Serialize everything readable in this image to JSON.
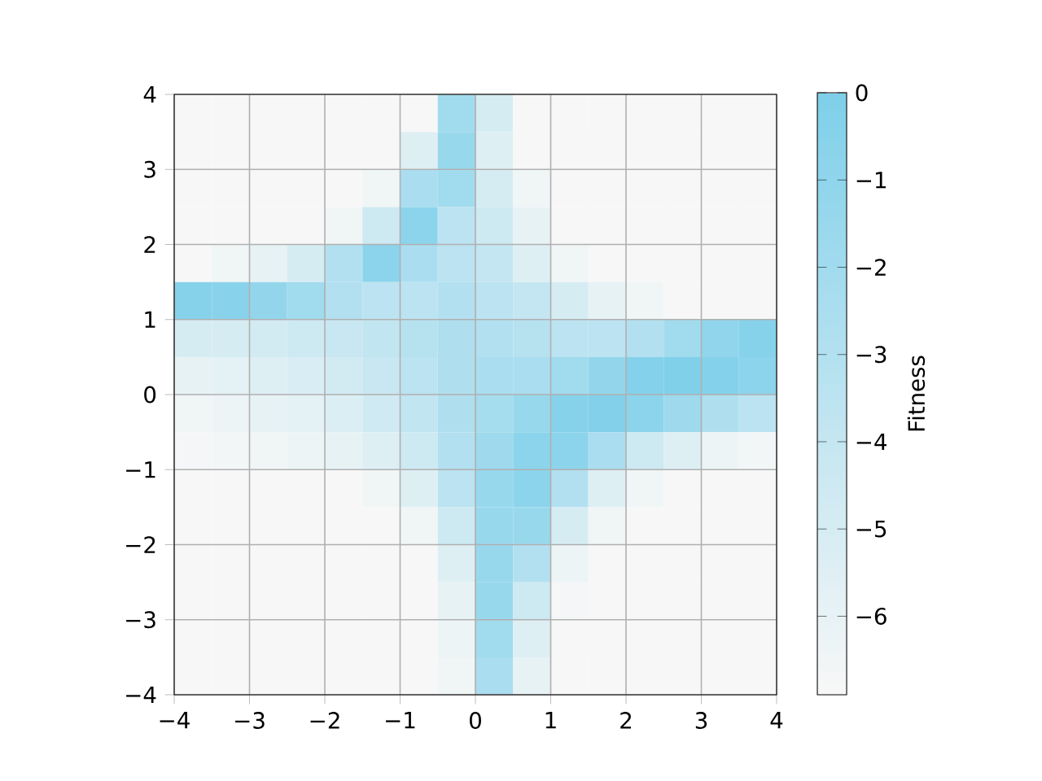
{
  "chart_data": {
    "type": "heatmap",
    "x": [
      -3.75,
      -3.25,
      -2.75,
      -2.25,
      -1.75,
      -1.25,
      -0.75,
      -0.25,
      0.25,
      0.75,
      1.25,
      1.75,
      2.25,
      2.75,
      3.25,
      3.75
    ],
    "y": [
      3.75,
      3.25,
      2.75,
      2.25,
      1.75,
      1.25,
      0.75,
      0.25,
      -0.25,
      -0.75,
      -1.25,
      -1.75,
      -2.25,
      -2.75,
      -3.25,
      -3.75
    ],
    "xlim": [
      -4,
      4
    ],
    "ylim": [
      -4,
      4
    ],
    "xticks": [
      {
        "value": -4,
        "label": "−4"
      },
      {
        "value": -3,
        "label": "−3"
      },
      {
        "value": -2,
        "label": "−2"
      },
      {
        "value": -1,
        "label": "−1"
      },
      0,
      1,
      2,
      3,
      4
    ],
    "yticks": [
      {
        "value": -4,
        "label": "−4"
      },
      {
        "value": -3,
        "label": "−3"
      },
      {
        "value": -2,
        "label": "−2"
      },
      {
        "value": -1,
        "label": "−1"
      },
      0,
      1,
      2,
      3,
      4
    ],
    "clabel": "Fitness",
    "clim": [
      -6.9,
      0
    ],
    "cticks": [
      0,
      {
        "value": -1,
        "label": "−1"
      },
      {
        "value": -2,
        "label": "−2"
      },
      {
        "value": -3,
        "label": "−3"
      },
      {
        "value": -4,
        "label": "−4"
      },
      {
        "value": -5,
        "label": "−5"
      },
      {
        "value": -6,
        "label": "−6"
      }
    ],
    "grid": true,
    "cells": [
      [
        -6.9,
        -6.9,
        -6.9,
        -6.9,
        -6.9,
        -6.9,
        -6.9,
        -2,
        -5,
        -6.9,
        -6.9,
        -6.9,
        -6.9,
        -6.9,
        -6.9,
        -6.9
      ],
      [
        -6.9,
        -6.9,
        -6.9,
        -6.9,
        -6.9,
        -6.9,
        -5.5,
        -1.5,
        -5.5,
        -6.9,
        -6.9,
        -6.9,
        -6.9,
        -6.9,
        -6.9,
        -6.9
      ],
      [
        -6.9,
        -6.9,
        -6.9,
        -6.9,
        -6.9,
        -6.5,
        -2.5,
        -2,
        -5,
        -6.5,
        -6.9,
        -6.9,
        -6.9,
        -6.9,
        -6.9,
        -6.9
      ],
      [
        -6.9,
        -6.9,
        -6.9,
        -6.9,
        -6.5,
        -4.5,
        -0.8,
        -3.5,
        -4.5,
        -6,
        -6.9,
        -6.9,
        -6.9,
        -6.9,
        -6.9,
        -6.9
      ],
      [
        -6.9,
        -6.5,
        -6,
        -5,
        -3,
        -0.8,
        -2.5,
        -3.5,
        -4,
        -5.5,
        -6.5,
        -6.9,
        -6.9,
        -6.9,
        -6.9,
        -6.9
      ],
      [
        -0.5,
        -0.6,
        -1.2,
        -2,
        -3,
        -3.5,
        -3.5,
        -3,
        -3.5,
        -4,
        -5,
        -6,
        -6.5,
        -6.9,
        -6.9,
        -6.9
      ],
      [
        -5,
        -5,
        -4.8,
        -4.5,
        -4.2,
        -3.8,
        -3.2,
        -2.8,
        -3,
        -3.2,
        -3.5,
        -3.5,
        -3,
        -2,
        -1,
        -0.5
      ],
      [
        -6,
        -5.8,
        -5.5,
        -5.2,
        -4.8,
        -4.2,
        -3.5,
        -2.8,
        -2.5,
        -2.5,
        -2,
        -1.2,
        -0.3,
        -0.1,
        -0.3,
        -0.8
      ],
      [
        -6.5,
        -6.3,
        -6,
        -5.8,
        -5.3,
        -4.7,
        -3.8,
        -2.8,
        -2.2,
        -1.5,
        -0.5,
        -0.2,
        -0.8,
        -1.8,
        -2.8,
        -3.5
      ],
      [
        -6.8,
        -6.7,
        -6.5,
        -6.3,
        -6,
        -5.5,
        -4.5,
        -3,
        -1.8,
        -0.8,
        -0.8,
        -2.5,
        -4.5,
        -5.5,
        -6.3,
        -6.7
      ],
      [
        -6.9,
        -6.9,
        -6.9,
        -6.9,
        -6.9,
        -6.5,
        -5.5,
        -3.5,
        -1.5,
        -0.8,
        -3,
        -5.5,
        -6.5,
        -6.9,
        -6.9,
        -6.9
      ],
      [
        -6.9,
        -6.9,
        -6.9,
        -6.9,
        -6.9,
        -6.9,
        -6.5,
        -4.5,
        -1.5,
        -1.5,
        -5,
        -6.5,
        -6.9,
        -6.9,
        -6.9,
        -6.9
      ],
      [
        -6.9,
        -6.9,
        -6.9,
        -6.9,
        -6.9,
        -6.9,
        -6.9,
        -5.5,
        -1.5,
        -3,
        -6.3,
        -6.9,
        -6.9,
        -6.9,
        -6.9,
        -6.9
      ],
      [
        -6.9,
        -6.9,
        -6.9,
        -6.9,
        -6.9,
        -6.9,
        -6.9,
        -6,
        -1.5,
        -4.5,
        -6.8,
        -6.9,
        -6.9,
        -6.9,
        -6.9,
        -6.9
      ],
      [
        -6.9,
        -6.9,
        -6.9,
        -6.9,
        -6.9,
        -6.9,
        -6.9,
        -6.3,
        -2,
        -5.5,
        -6.9,
        -6.9,
        -6.9,
        -6.9,
        -6.9,
        -6.9
      ],
      [
        -6.9,
        -6.9,
        -6.9,
        -6.9,
        -6.9,
        -6.9,
        -6.9,
        -6.5,
        -2.5,
        -6,
        -6.9,
        -6.9,
        -6.9,
        -6.9,
        -6.9,
        -6.9
      ]
    ]
  }
}
